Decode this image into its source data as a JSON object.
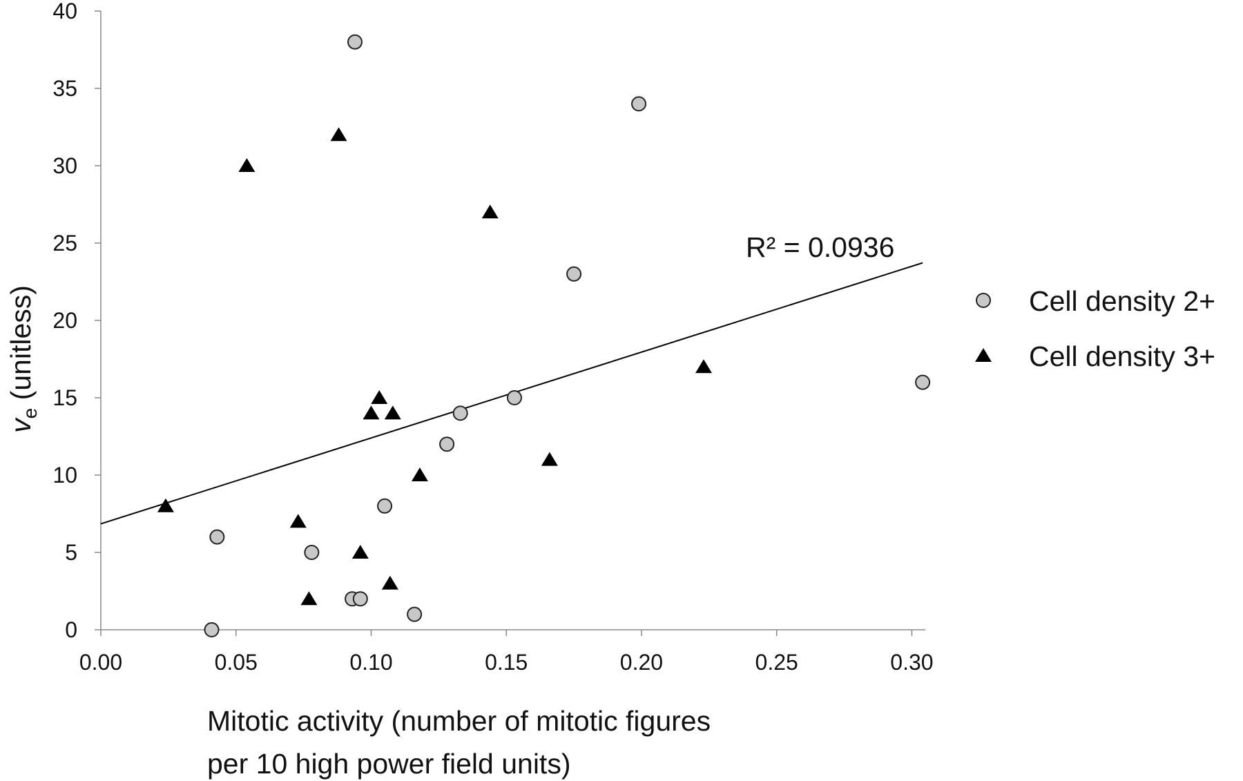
{
  "chart_data": {
    "type": "scatter",
    "xlabel_lines": [
      "Mitotic activity (number of mitotic figures",
      "per 10 high power field units)"
    ],
    "ylabel": {
      "symbol": "v",
      "subscript": "e",
      "unit": " (unitless)"
    },
    "xlim": [
      0,
      0.305
    ],
    "ylim": [
      0,
      40
    ],
    "x_ticks": [
      "0.00",
      "0.05",
      "0.10",
      "0.15",
      "0.20",
      "0.25",
      "0.30"
    ],
    "x_tick_values": [
      0,
      0.05,
      0.1,
      0.15,
      0.2,
      0.25,
      0.3
    ],
    "y_ticks": [
      "0",
      "5",
      "10",
      "15",
      "20",
      "25",
      "30",
      "35",
      "40"
    ],
    "y_tick_values": [
      0,
      5,
      10,
      15,
      20,
      25,
      30,
      35,
      40
    ],
    "grid": false,
    "legend_position": "right",
    "series": [
      {
        "name": "Cell density 2+",
        "marker": "circle",
        "color": "#c8c8c8",
        "points": [
          [
            0.094,
            38
          ],
          [
            0.199,
            34
          ],
          [
            0.175,
            23
          ],
          [
            0.304,
            16
          ],
          [
            0.153,
            15
          ],
          [
            0.133,
            14
          ],
          [
            0.128,
            12
          ],
          [
            0.105,
            8
          ],
          [
            0.043,
            6
          ],
          [
            0.078,
            5
          ],
          [
            0.093,
            2
          ],
          [
            0.096,
            2
          ],
          [
            0.116,
            1
          ],
          [
            0.041,
            0
          ]
        ]
      },
      {
        "name": "Cell density 3+",
        "marker": "triangle",
        "color": "#000000",
        "points": [
          [
            0.088,
            32
          ],
          [
            0.054,
            30
          ],
          [
            0.144,
            27
          ],
          [
            0.223,
            17
          ],
          [
            0.103,
            15
          ],
          [
            0.1,
            14
          ],
          [
            0.108,
            14
          ],
          [
            0.166,
            11
          ],
          [
            0.118,
            10
          ],
          [
            0.024,
            8
          ],
          [
            0.073,
            7
          ],
          [
            0.096,
            5
          ],
          [
            0.107,
            3
          ],
          [
            0.077,
            2
          ]
        ]
      }
    ],
    "trendline": {
      "type": "linear",
      "x_range": [
        0,
        0.304
      ],
      "intercept": 6.85,
      "slope": 55.5,
      "label": "R² = 0.0936"
    }
  }
}
